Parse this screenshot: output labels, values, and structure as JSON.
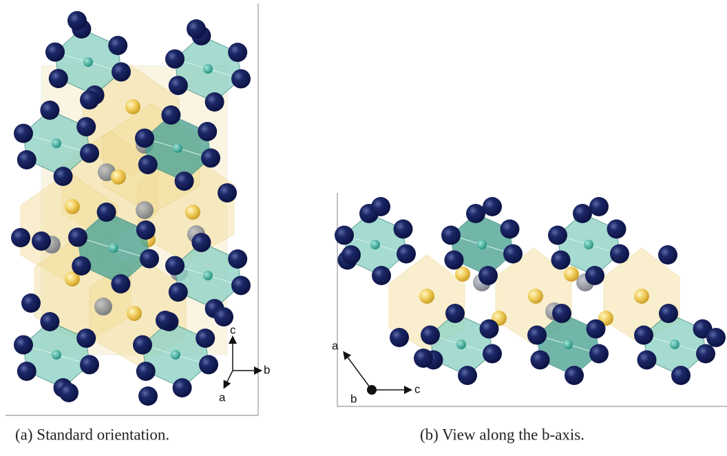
{
  "figures": [
    {
      "caption": "(a) Standard orientation.",
      "axes": [
        "c",
        "b",
        "a"
      ]
    },
    {
      "caption": "(b) View along the b-axis.",
      "axes": [
        "a",
        "b",
        "c"
      ]
    }
  ]
}
